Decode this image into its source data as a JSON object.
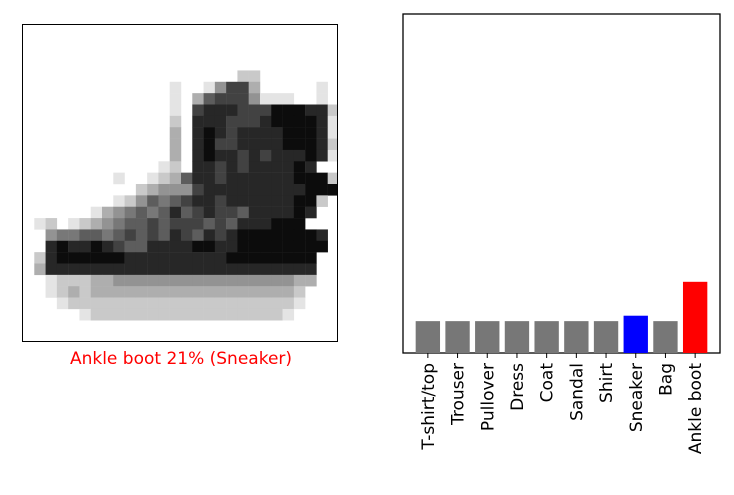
{
  "image_panel": {
    "caption": "Ankle boot 21% (Sneaker)",
    "caption_color": "#ff0000",
    "pixel_grid": [
      "............................",
      "............................",
      "............................",
      "............................",
      "...................22.......",
      ".............1..14773.....1.",
      ".............1.367774111..1.",
      ".............1.7888777999882",
      ".............2.8887778999981",
      ".............3.8987888899981",
      ".............3.8977888899982",
      ".............3.8988787888981",
      "............12.88787888898.",
      "........1..12368878888889992",
      "..........2344478888888889992",
      "........1246567887888888992.",
      "......13456568678776888898..",
      ".12.123456676777676888999.",
      "..4556656767687687899999998.",
      "..8988987668888998899999999.",
      ".2899999988888888899999999.",
      ".3888888888888888888888888..",
      "..122233444444444444444433..",
      "..12323333333333333333332...",
      "...1222222222222222222221...",
      ".....1222222222222222221....",
      "............................",
      "............................"
    ]
  },
  "chart_data": {
    "type": "bar",
    "categories": [
      "T-shirt/top",
      "Trouser",
      "Pullover",
      "Dress",
      "Coat",
      "Sandal",
      "Shirt",
      "Sneaker",
      "Bag",
      "Ankle boot"
    ],
    "values": [
      0.094,
      0.094,
      0.094,
      0.094,
      0.094,
      0.094,
      0.094,
      0.11,
      0.094,
      0.21
    ],
    "colors": [
      "#777777",
      "#777777",
      "#777777",
      "#777777",
      "#777777",
      "#777777",
      "#777777",
      "#0000ff",
      "#777777",
      "#ff0000"
    ],
    "ylim": [
      0,
      1
    ],
    "title": "",
    "xlabel": "",
    "ylabel": "",
    "grid": false
  }
}
